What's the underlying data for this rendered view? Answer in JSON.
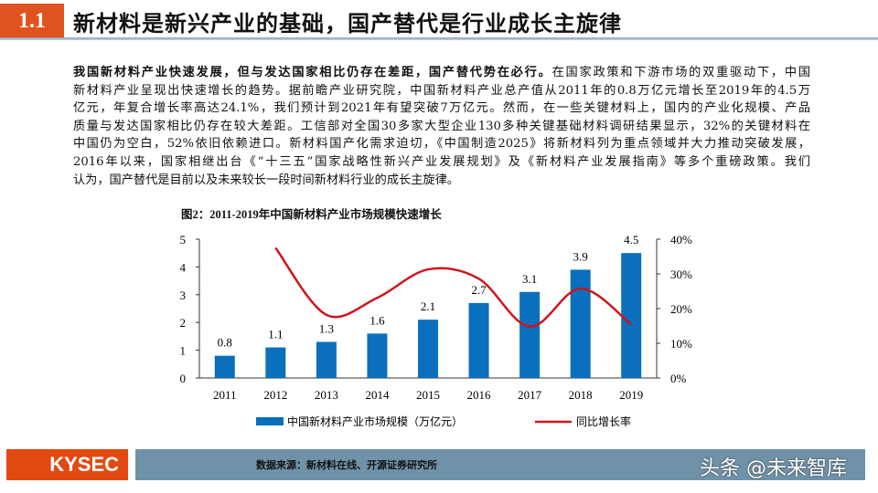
{
  "header": {
    "section": "1.1",
    "title": "新材料是新兴产业的基础，国产替代是行业成长主旋律"
  },
  "paragraph": {
    "lead": "我国新材料产业快速发展，但与发达国家相比仍存在差距，国产替代势在必行。",
    "lines": [
      "在国家政策和下游市场的双重驱动下，中国",
      "新材料产业呈现出快速增长的趋势。据前瞻产业研究院，中国新材料产业总产值从2011年的0.8万亿元增长至2019年的4.5万",
      "亿元，年复合增长率高达24.1%，我们预计到2021年有望突破7万亿元。然而，在一些关键材料上，国内的产业化规模、产品",
      "质量与发达国家相比仍存在较大差距。工信部对全国30多家大型企业130多种关键基础材料调研结果显示，32%的关键材料在",
      "中国仍为空白，52%依旧依赖进口。新材料国产化需求迫切，《中国制造2025》将新材料列为重点领域并大力推动突破发展，",
      "2016年以来，国家相继出台《“十三五”国家战略性新兴产业发展规划》及《新材料产业发展指南》等多个重磅政策。我们",
      "认为，国产替代是目前以及未来较长一段时间新材料行业的成长主旋律。"
    ]
  },
  "chart_data": {
    "type": "bar+line",
    "title": "图2：2011-2019年中国新材料产业市场规模快速增长",
    "categories": [
      "2011",
      "2012",
      "2013",
      "2014",
      "2015",
      "2016",
      "2017",
      "2018",
      "2019"
    ],
    "series": [
      {
        "name": "中国新材料产业市场规模（万亿元）",
        "type": "bar",
        "axis": "left",
        "color": "#0a6fbd",
        "values": [
          0.8,
          1.1,
          1.3,
          1.6,
          2.1,
          2.7,
          3.1,
          3.9,
          4.5
        ],
        "data_labels": [
          "0.8",
          "1.1",
          "1.3",
          "1.6",
          "2.1",
          "2.7",
          "3.1",
          "3.9",
          "4.5"
        ]
      },
      {
        "name": "同比增长率",
        "type": "line",
        "axis": "right",
        "color": "#d0141c",
        "smooth": true,
        "values": [
          null,
          37.5,
          18.2,
          23.1,
          31.3,
          28.6,
          14.8,
          25.8,
          15.4
        ]
      }
    ],
    "left_axis": {
      "min": 0,
      "max": 5,
      "ticks": [
        "0",
        "1",
        "2",
        "3",
        "4",
        "5"
      ]
    },
    "right_axis": {
      "min": 0,
      "max": 40,
      "ticks": [
        "0%",
        "10%",
        "20%",
        "30%",
        "40%"
      ]
    },
    "grid": false,
    "legend": "bottom"
  },
  "footer": {
    "logo": "KYSEC",
    "source": "数据来源：新材料在线、开源证券研究所",
    "watermark": "头条 @未来智库",
    "brand_color": "#e24a12"
  }
}
